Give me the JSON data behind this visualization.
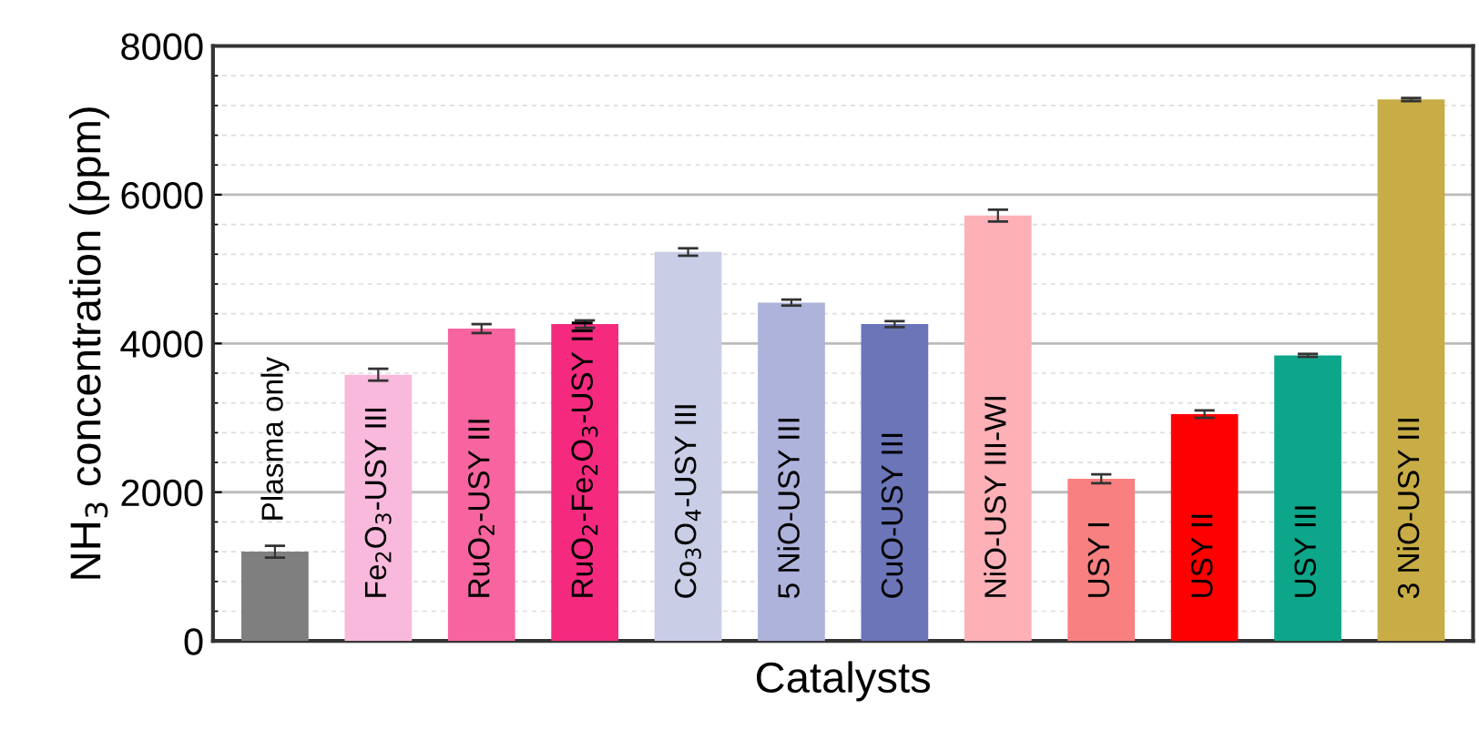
{
  "chart_data": {
    "type": "bar",
    "xlabel": "Catalysts",
    "ylabel": "NH$_{3}$ concentration (ppm)",
    "categories": [
      "Plasma only",
      "Fe$_{2}$O$_{3}$-USY III",
      "RuO$_{2}$-USY III",
      "RuO$_{2}$-Fe$_{2}$O$_{3}$-USY III",
      "Co$_{3}$O$_{4}$-USY III",
      "5 NiO-USY III",
      "CuO-USY III",
      "NiO-USY III-WI",
      "USY I",
      "USY II",
      "USY III",
      "3 NiO-USY III"
    ],
    "values": [
      1200,
      3580,
      4200,
      4260,
      5230,
      4550,
      4260,
      5720,
      2180,
      3050,
      3840,
      7280
    ],
    "errors": [
      80,
      80,
      60,
      50,
      50,
      40,
      40,
      80,
      60,
      50,
      20,
      20
    ],
    "colors": [
      "#7f7f7f",
      "#f8b9dc",
      "#f7649f",
      "#f52a7f",
      "#c9cde6",
      "#adb3db",
      "#6b75b8",
      "#feb0b7",
      "#f98080",
      "#fe0000",
      "#0da68a",
      "#c8ac45"
    ],
    "ylim": [
      0,
      8000
    ],
    "yticks": [
      0,
      2000,
      4000,
      6000,
      8000
    ],
    "grid": "y",
    "tick_labels": "y",
    "legend": false
  }
}
